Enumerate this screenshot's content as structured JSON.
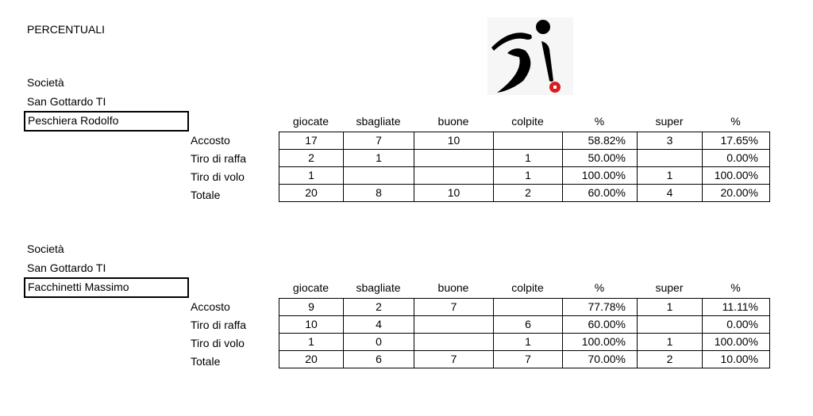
{
  "title": "PERCENTUALI",
  "logo": {
    "name": "bocce-player-logo",
    "ball_color": "#d81e1e"
  },
  "columns": [
    "giocate",
    "sbagliate",
    "buone",
    "colpite",
    "%",
    "super",
    "%"
  ],
  "players": [
    {
      "societa_label": "Società",
      "societa": "San Gottardo TI",
      "name": "Peschiera Rodolfo",
      "rows": [
        {
          "label": "Accosto",
          "cells": [
            "17",
            "7",
            "10",
            "",
            "58.82%",
            "3",
            "17.65%"
          ]
        },
        {
          "label": "Tiro di raffa",
          "cells": [
            "2",
            "1",
            "",
            "1",
            "50.00%",
            "",
            "0.00%"
          ]
        },
        {
          "label": "Tiro di volo",
          "cells": [
            "1",
            "",
            "",
            "1",
            "100.00%",
            "1",
            "100.00%"
          ]
        },
        {
          "label": "Totale",
          "cells": [
            "20",
            "8",
            "10",
            "2",
            "60.00%",
            "4",
            "20.00%"
          ]
        }
      ]
    },
    {
      "societa_label": "Società",
      "societa": "San Gottardo TI",
      "name": "Facchinetti Massimo",
      "rows": [
        {
          "label": "Accosto",
          "cells": [
            "9",
            "2",
            "7",
            "",
            "77.78%",
            "1",
            "11.11%"
          ]
        },
        {
          "label": "Tiro di raffa",
          "cells": [
            "10",
            "4",
            "",
            "6",
            "60.00%",
            "",
            "0.00%"
          ]
        },
        {
          "label": "Tiro di volo",
          "cells": [
            "1",
            "0",
            "",
            "1",
            "100.00%",
            "1",
            "100.00%"
          ]
        },
        {
          "label": "Totale",
          "cells": [
            "20",
            "6",
            "7",
            "7",
            "70.00%",
            "2",
            "10.00%"
          ]
        }
      ]
    }
  ]
}
